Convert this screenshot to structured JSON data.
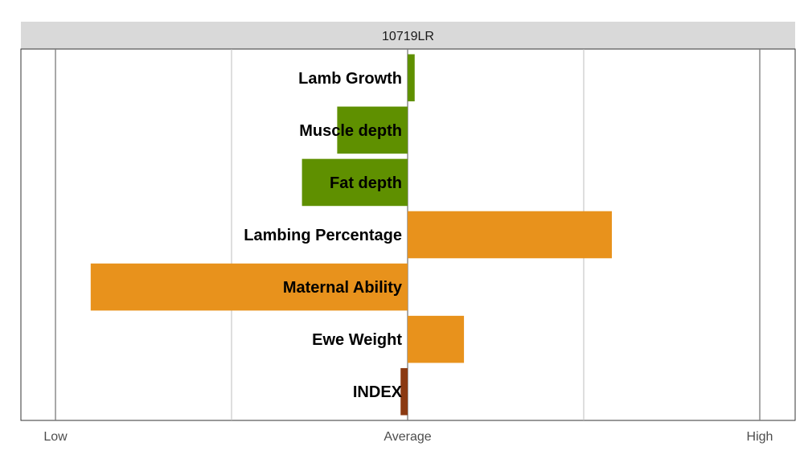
{
  "chart_data": {
    "type": "bar",
    "orientation": "horizontal",
    "title": "10719LR",
    "categories": [
      "Lamb Growth",
      "Muscle depth",
      "Fat depth",
      "Lambing Percentage",
      "Maternal Ability",
      "Ewe Weight",
      "INDEX"
    ],
    "values": [
      0.04,
      -0.4,
      -0.6,
      1.16,
      -1.8,
      0.32,
      -0.04
    ],
    "colors": [
      "#5f9000",
      "#5f9000",
      "#5f9000",
      "#e8921c",
      "#e8921c",
      "#e8921c",
      "#8b3a12"
    ],
    "xlim": [
      -2,
      2
    ],
    "x_ticks": [
      -2,
      -1,
      0,
      1,
      2
    ],
    "x_tick_labels": [
      {
        "value": -2,
        "label": "Low"
      },
      {
        "value": 0,
        "label": "Average"
      },
      {
        "value": 2,
        "label": "High"
      }
    ],
    "grid": true,
    "legend": "none"
  }
}
